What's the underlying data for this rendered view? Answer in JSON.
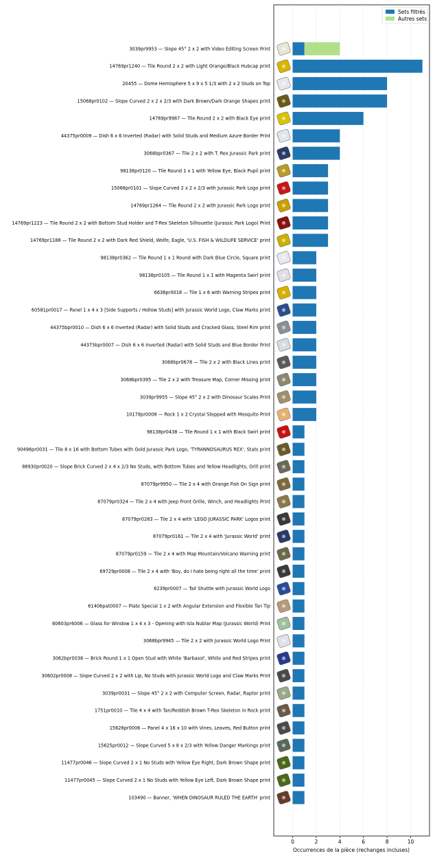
{
  "chart_data": {
    "type": "bar",
    "orientation": "horizontal",
    "stacked": true,
    "xlabel": "Occurrences de la pièce (rechanges incluses)",
    "xlim": [
      -1.6,
      11.6
    ],
    "xticks": [
      0,
      2,
      4,
      6,
      8,
      10
    ],
    "grid": "vertical dashed",
    "legend_position": "top-right",
    "colors": {
      "filtered": "#1f77b4",
      "other": "#b3df8a",
      "grid": "#dddddd"
    },
    "series": [
      {
        "name": "Sets filtrés",
        "key": "filtered"
      },
      {
        "name": "Autres sets",
        "key": "other"
      }
    ],
    "categories": [
      "3039pr9953 — Slope 45° 2 x 2 with Video Editing Screen Print",
      "14769pr1240 — Tile Round 2 x 2 with Light Orange/Black Hubcap print",
      "20455 — Dome Hemisphere 5 x 9 x 5 1/3 with 2 x 2 Studs on Top",
      "15068pr0102 — Slope Curved 2 x 2 x 2/3 with Dark Brown/Dark Orange Shapes print",
      "14769pr9987 — Tile Round 2 x 2 with Black Eye print",
      "44375pr0009 — Dish 6 x 6 Inverted (Radar) with Solid Studs and Medium Azure Border Print",
      "3068bpr0367 — Tile 2 x 2 with T. Rex Jurassic Park print",
      "98138pr0120 — Tile Round 1 x 1 with Yellow Eye, Black Pupil print",
      "15068pr0101 — Slope Curved 2 x 2 x 2/3 with Jurassic Park Logo print",
      "14769pr1264 — Tile Round 2 x 2 with Jurassic Park Logo print",
      "14769pr1223 — Tile Round 2 x 2 with Bottom Stud Holder and T-Rex Skeleton Silhouette (Jurassic Park Logo) Print",
      "14769pr1188 — Tile Round 2 x 2 with Dark Red Shield, Wolfe, Eagle, 'U.S. FISH & WILDLIFE SERVICE' print",
      "98138pr0362 — Tile Round 1 x 1 Round with Dark Blue Circle, Square print",
      "98138pr0105 — Tile Round 1 x 1 with Magenta Swirl print",
      "6636pr0018 — Tile 1 x 6 with Warning Stripes print",
      "60581pr0017 — Panel 1 x 4 x 3 [Side Supports / Hollow Studs] with Jurassic World Logo, Claw Marks print",
      "44375bpr0010 — Dish 6 x 6 Inverted (Radar) with Solid Studs and Cracked Glass, Steel Rim print",
      "44375bpr0007 — Dish 6 x 6 Inverted (Radar) with Solid Studs and Blue Border Print",
      "3068bpr0678 — Tile 2 x 2 with Black Lines print",
      "3068bpr0395 — Tile 2 x 2 with Treasure Map, Corner Missing print",
      "3039pr9955 — Slope 45° 2 x 2 with Dinosaur Scales Print",
      "10178pr0008 — Rock 1 x 2 Crystal Stepped with Mosquito Print",
      "98138pr0438 — Tile Round 1 x 1 with Black Swirl print",
      "90498pr0031 — Tile 8 x 16 with Bottom Tubes with Gold Jurassic Park Logo, 'TYRANNOSAURUS REX', Stats print",
      "88930pr0020 — Slope Brick Curved 2 x 4 x 2/3 No Studs, with Bottom Tubes and Yellow Headlights, Grill print",
      "87079pr9950 — Tile 2 x 4 with Orange Fish On Sign print",
      "87079pr0324 — Tile 2 x 4 with Jeep Front Grille, Winch, and Headlights Print",
      "87079pr0283 — Tile 2 x 4 with 'LEGO JURASSIC PARK' Logos print",
      "87079pr0161 — Tile 2 x 4 with 'Jurassic World' print",
      "87079pr0159 — Tile 2 x 4 with Map Mountain/Volcano Warning print",
      "69729pr0008 — Tile 2 x 4 with 'Boy, do I hate being right all the time' print",
      "6239pr0007 — Tail Shuttle with Jurassic World Logo",
      "61406pat0007 — Plate Special 1 x 2 with Angular Extension and Flexible Tan Tip",
      "60603pr6006 — Glass for Window 1 x 4 x 3 - Opening with Isla Nublar Map (Jurassic World) Print",
      "3068bpr9945 — Tile 2 x 2 with Jurassic World Logo Print",
      "3062bpr0038 — Brick Round 1 x 1 Open Stud with White 'Barbasol', White and Red Stripes print",
      "30602pr0008 — Slope Curved 2 x 2 with Lip, No Studs with Jurassic World Logo and Claw Marks Print",
      "3039pr0031 — Slope 45° 2 x 2 with Computer Screen, Radar, Raptor print",
      "1751pr0010 — Tile 4 x 4 with Tan/Reddish Brown T-Rex Skeleton in Rock print",
      "15626pr0006 — Panel 4 x 16 x 10 with Vines, Leaves, Red Button print",
      "15625pr0012 — Slope Curved 5 x 8 x 2/3 with Yellow Danger Markings print",
      "11477pr0046 — Slope Curved 2 x 1 No Studs with Yellow Eye Right, Dark Brown Shape print",
      "11477pr0045 — Slope Curved 2 x 1 No Studs with Yellow Eye Left, Dark Brown Shape print",
      "103490 — Banner, 'WHEN DINOSAUR RULED THE EARTH' print"
    ],
    "filtered": [
      1,
      11,
      8,
      8,
      6,
      4,
      4,
      3,
      3,
      3,
      3,
      3,
      2,
      2,
      2,
      2,
      2,
      2,
      2,
      2,
      2,
      2,
      1,
      1,
      1,
      1,
      1,
      1,
      1,
      1,
      1,
      1,
      1,
      1,
      1,
      1,
      1,
      1,
      1,
      1,
      1,
      1,
      1,
      1
    ],
    "other": [
      3,
      0,
      0,
      0,
      0,
      0,
      0,
      0,
      0,
      0,
      0,
      0,
      0,
      0,
      0,
      0,
      0,
      0,
      0,
      0,
      0,
      0,
      0,
      0,
      0,
      0,
      0,
      0,
      0,
      0,
      0,
      0,
      0,
      0,
      0,
      0,
      0,
      0,
      0,
      0,
      0,
      0,
      0,
      0
    ],
    "part_icon_colors": [
      "#e8e6d8",
      "#d9b400",
      "#e8e8e8",
      "#6b5a1a",
      "#d9c300",
      "#dfe6ea",
      "#2b3b6b",
      "#b89a2a",
      "#c81818",
      "#c8a000",
      "#8a1010",
      "#c9b100",
      "#e8e8ee",
      "#e0dfe4",
      "#d8b000",
      "#2c4d8c",
      "#8a9096",
      "#d6dbe2",
      "#5a5a5a",
      "#8c8672",
      "#a09070",
      "#e8b070",
      "#c81010",
      "#6a5a2a",
      "#6a6a5a",
      "#7a6a40",
      "#8a7a4a",
      "#3a3a3a",
      "#2a3a6a",
      "#6a6a4a",
      "#3a3a3a",
      "#2a4a9a",
      "#b89a7a",
      "#a0c0a0",
      "#e0e0e8",
      "#2a3a8a",
      "#4a4a4a",
      "#9aaa8a",
      "#6a5a4a",
      "#4a4a4a",
      "#5a6a5a",
      "#4a6a1a",
      "#4a6a1a",
      "#6a3a2a"
    ]
  }
}
